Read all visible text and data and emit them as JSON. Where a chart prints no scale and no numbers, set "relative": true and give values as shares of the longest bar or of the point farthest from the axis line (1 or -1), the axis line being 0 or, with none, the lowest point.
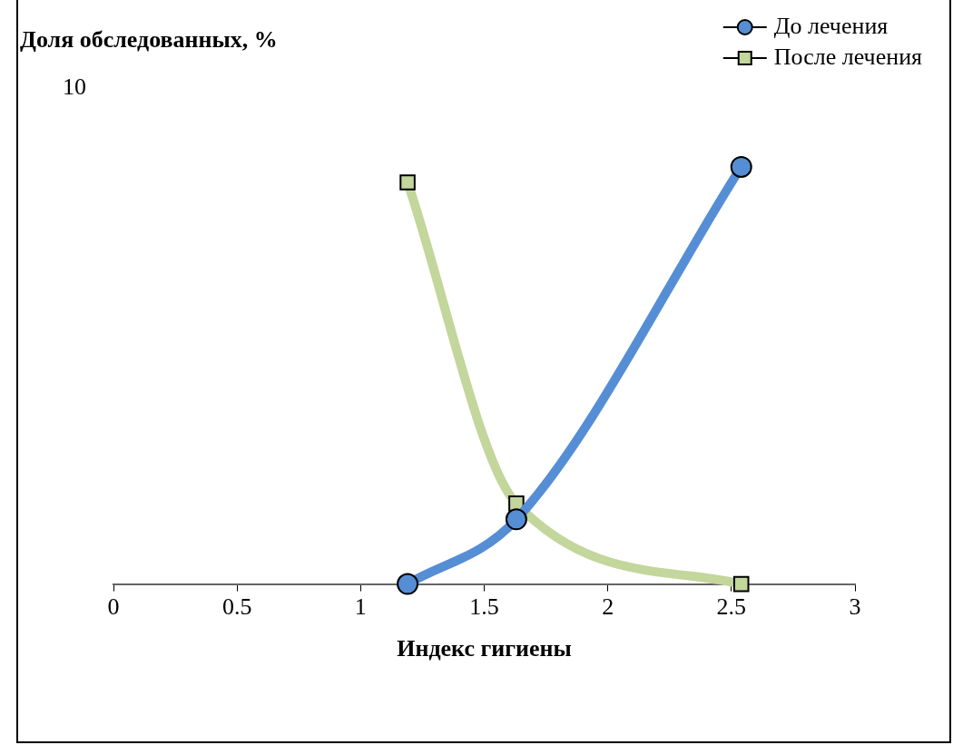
{
  "chart_data": {
    "type": "line",
    "ylabel": "Доля обследованных, %",
    "xlabel": "Индекс гигиены",
    "xlim": [
      0,
      3
    ],
    "xticks": [
      0,
      0.5,
      1,
      1.5,
      2,
      2.5,
      3
    ],
    "relative": true,
    "annotations": [
      "10"
    ],
    "legend": "top right",
    "series": [
      {
        "name": "До лечения",
        "color": "#558ed5",
        "marker": "circle",
        "x": [
          1.19,
          1.63,
          2.54
        ],
        "values": [
          0,
          0.155,
          1
        ]
      },
      {
        "name": "После лечения",
        "color": "#c3d69b",
        "marker": "square",
        "x": [
          1.19,
          1.63,
          2.54
        ],
        "values": [
          0.963,
          0.193,
          0
        ]
      }
    ]
  }
}
